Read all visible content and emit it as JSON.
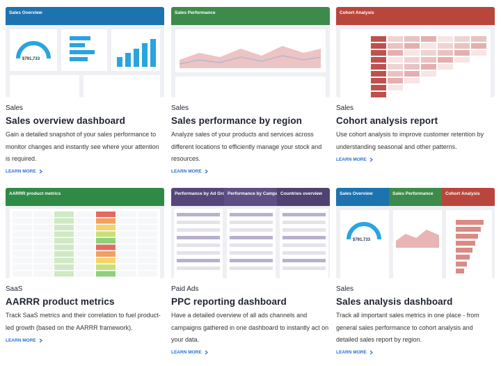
{
  "cards": [
    {
      "category": "Sales",
      "title": "Sales overview dashboard",
      "description": "Gain a detailed snapshot of your sales performance to monitor changes and instantly see where your attention is required.",
      "link": "LEARN MORE",
      "thumbnail": {
        "tabs": [
          "Sales Overview"
        ],
        "gauge": "$791,733"
      }
    },
    {
      "category": "Sales",
      "title": "Sales performance by region",
      "description": "Analyze sales of your products and services across different locations to efficiently manage your stock and resources.",
      "link": "LEARN MORE",
      "thumbnail": {
        "tabs": [
          "Sales Performance"
        ]
      }
    },
    {
      "category": "Sales",
      "title": "Cohort analysis report",
      "description": "Use cohort analysis to improve customer retention by understanding seasonal and other patterns.",
      "link": "LEARN MORE",
      "thumbnail": {
        "tabs": [
          "Cohort Analysis"
        ]
      }
    },
    {
      "category": "SaaS",
      "title": "AARRR product metrics",
      "description": "Track SaaS metrics and their correlation to fuel product-led growth (based on the AARRR framework).",
      "link": "LEARN MORE",
      "thumbnail": {
        "tabs": [
          "AARRR product metrics"
        ]
      }
    },
    {
      "category": "Paid Ads",
      "title": "PPC reporting dashboard",
      "description": "Have a detailed overview of all ads channels and campaigns gathered in one dashboard to instantly act on your data.",
      "link": "LEARN MORE",
      "thumbnail": {
        "tabs": [
          "Performance by Ad Group",
          "Performance by Campaign",
          "Countries overview"
        ]
      }
    },
    {
      "category": "Sales",
      "title": "Sales analysis dashboard",
      "description": "Track all important sales metrics in one place - from general sales performance to cohort analysis and detailed sales report by region.",
      "link": "LEARN MORE",
      "thumbnail": {
        "tabs": [
          "Sales Overview",
          "Sales Performance",
          "Cohort Analysis"
        ],
        "gauge": "$791,733"
      }
    }
  ]
}
